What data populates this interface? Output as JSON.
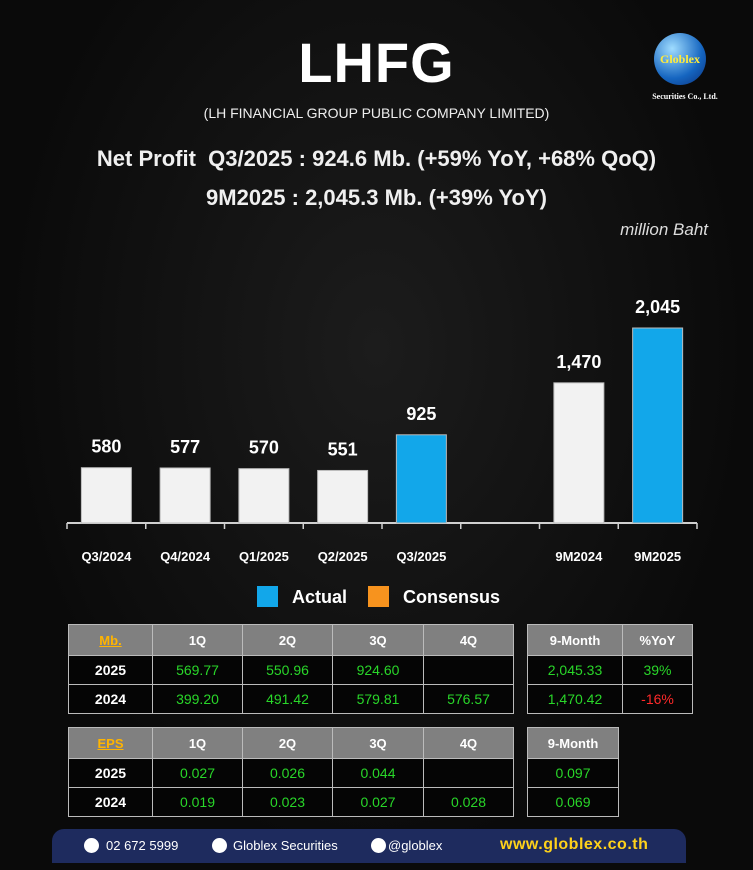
{
  "header": {
    "title": "LHFG",
    "subtitle": "(LH FINANCIAL GROUP PUBLIC COMPANY LIMITED)",
    "logo": {
      "name": "Globlex",
      "tagline": "Securities Co., Ltd."
    }
  },
  "headline": [
    "Net Profit  Q3/2025 : 924.6 Mb. (+59% YoY, +68% QoQ)",
    "9M2025 : 2,045.3 Mb. (+39% YoY)"
  ],
  "chart_data": {
    "type": "bar",
    "unit": "million Baht",
    "categories": [
      "Q3/2024",
      "Q4/2024",
      "Q1/2025",
      "Q2/2025",
      "Q3/2025",
      null,
      "9M2024",
      "9M2025"
    ],
    "values": [
      580,
      577,
      570,
      551,
      925,
      null,
      1470,
      2045
    ],
    "value_labels": [
      "580",
      "577",
      "570",
      "551",
      "925",
      null,
      "1,470",
      "2,045"
    ],
    "colors": [
      "#f2f2f2",
      "#f2f2f2",
      "#f2f2f2",
      "#f2f2f2",
      "#12a7ea",
      null,
      "#f2f2f2",
      "#12a7ea"
    ],
    "legend": [
      {
        "name": "Actual",
        "color": "#12a7ea"
      },
      {
        "name": "Consensus",
        "color": "#f7931e"
      }
    ]
  },
  "tables": [
    {
      "header": [
        "Mb.",
        "1Q",
        "2Q",
        "3Q",
        "4Q"
      ],
      "rows": [
        [
          "2025",
          "569.77",
          "550.96",
          "924.60",
          null
        ],
        [
          "2024",
          "399.20",
          "491.42",
          "579.81",
          "576.57"
        ]
      ]
    },
    {
      "header": [
        "9-Month",
        "%YoY"
      ],
      "rows": [
        [
          "2,045.33",
          "39%"
        ],
        [
          "1,470.42",
          "-16%"
        ]
      ]
    },
    {
      "header": [
        "EPS",
        "1Q",
        "2Q",
        "3Q",
        "4Q"
      ],
      "rows": [
        [
          "2025",
          "0.027",
          "0.026",
          "0.044",
          null
        ],
        [
          "2024",
          "0.019",
          "0.023",
          "0.027",
          "0.028"
        ]
      ]
    },
    {
      "header": [
        "9-Month"
      ],
      "rows": [
        [
          "0.097"
        ],
        [
          "0.069"
        ]
      ]
    }
  ],
  "footer": {
    "phone": "02 672 5999",
    "facebook": "Globlex Securities",
    "line": "@globlex",
    "website": "www.globlex.co.th"
  }
}
